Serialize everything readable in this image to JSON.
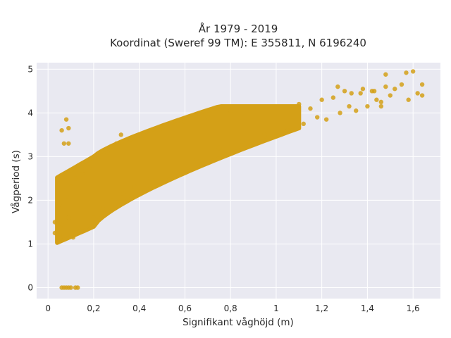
{
  "chart_data": {
    "type": "scatter",
    "title_line1": "År 1979 - 2019",
    "title_line2": "Koordinat (Sweref 99 TM): E 355811, N 6196240",
    "xlabel": "Signifikant våghöjd (m)",
    "ylabel": "Vågperiod (s)",
    "xlim": [
      -0.05,
      1.72
    ],
    "ylim": [
      -0.25,
      5.15
    ],
    "x_ticks": [
      0,
      0.2,
      0.4,
      0.6,
      0.8,
      1.0,
      1.2,
      1.4,
      1.6
    ],
    "x_tick_labels": [
      "0",
      "0,2",
      "0,4",
      "0,6",
      "0,8",
      "1",
      "1,2",
      "1,4",
      "1,6"
    ],
    "y_ticks": [
      0,
      1,
      2,
      3,
      4,
      5
    ],
    "y_tick_labels": [
      "0",
      "1",
      "2",
      "3",
      "4",
      "5"
    ],
    "grid": true,
    "background_color": "#e9e9f1",
    "marker_color": "#d4a017",
    "points": [
      [
        0.06,
        0
      ],
      [
        0.07,
        0
      ],
      [
        0.08,
        0
      ],
      [
        0.09,
        0
      ],
      [
        0.1,
        0
      ],
      [
        0.12,
        0
      ],
      [
        0.13,
        0
      ],
      [
        0.06,
        3.6
      ],
      [
        0.07,
        3.3
      ],
      [
        0.08,
        3.85
      ],
      [
        0.09,
        3.3
      ],
      [
        0.09,
        3.65
      ],
      [
        0.03,
        1.5
      ],
      [
        0.03,
        1.25
      ],
      [
        0.04,
        1.3
      ],
      [
        0.05,
        1.2
      ],
      [
        0.05,
        1.9
      ],
      [
        0.06,
        1.45
      ],
      [
        0.07,
        1.1
      ],
      [
        0.08,
        2.1
      ],
      [
        0.09,
        1.6
      ],
      [
        0.1,
        2.3
      ],
      [
        0.11,
        1.15
      ],
      [
        0.12,
        2.5
      ],
      [
        0.14,
        1.3
      ],
      [
        0.15,
        2.6
      ],
      [
        0.17,
        1.4
      ],
      [
        0.18,
        2.75
      ],
      [
        0.2,
        1.6
      ],
      [
        0.22,
        2.95
      ],
      [
        0.24,
        1.8
      ],
      [
        0.26,
        3.1
      ],
      [
        0.28,
        2.0
      ],
      [
        0.3,
        3.3
      ],
      [
        0.32,
        3.5
      ],
      [
        0.33,
        2.15
      ],
      [
        0.36,
        3.4
      ],
      [
        0.38,
        2.3
      ],
      [
        0.42,
        3.5
      ],
      [
        0.45,
        2.5
      ],
      [
        0.5,
        3.65
      ],
      [
        0.55,
        2.7
      ],
      [
        0.6,
        3.8
      ],
      [
        0.65,
        2.95
      ],
      [
        0.7,
        3.9
      ],
      [
        0.75,
        3.2
      ],
      [
        0.8,
        4.05
      ],
      [
        0.85,
        3.35
      ],
      [
        0.9,
        4.1
      ],
      [
        0.95,
        3.5
      ],
      [
        1.0,
        4.15
      ],
      [
        1.05,
        3.6
      ],
      [
        1.1,
        4.2
      ],
      [
        1.12,
        3.75
      ],
      [
        1.15,
        4.1
      ],
      [
        1.18,
        3.9
      ],
      [
        1.2,
        4.3
      ],
      [
        1.22,
        3.85
      ],
      [
        1.25,
        4.35
      ],
      [
        1.28,
        4.0
      ],
      [
        1.3,
        4.5
      ],
      [
        1.32,
        4.15
      ],
      [
        1.35,
        4.05
      ],
      [
        1.37,
        4.45
      ],
      [
        1.4,
        4.15
      ],
      [
        1.42,
        4.5
      ],
      [
        1.44,
        4.3
      ],
      [
        1.46,
        4.15
      ],
      [
        1.48,
        4.6
      ],
      [
        1.5,
        4.4
      ],
      [
        1.52,
        4.55
      ],
      [
        1.55,
        4.65
      ],
      [
        1.57,
        4.92
      ],
      [
        1.58,
        4.3
      ],
      [
        1.6,
        4.95
      ],
      [
        1.62,
        4.45
      ],
      [
        1.64,
        4.4
      ],
      [
        1.64,
        4.65
      ],
      [
        1.48,
        4.88
      ],
      [
        1.46,
        4.25
      ],
      [
        1.43,
        4.5
      ],
      [
        1.38,
        4.55
      ],
      [
        1.33,
        4.45
      ],
      [
        1.27,
        4.6
      ]
    ]
  }
}
